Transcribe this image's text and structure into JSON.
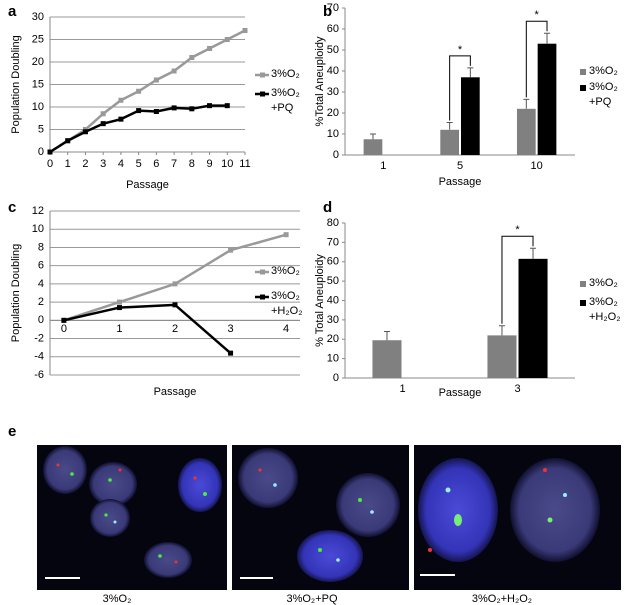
{
  "chart_data": [
    {
      "panel": "a",
      "type": "line",
      "x": [
        0,
        1,
        2,
        3,
        4,
        5,
        6,
        7,
        8,
        9,
        10,
        11
      ],
      "xlim": [
        0,
        11
      ],
      "xticks": [
        0,
        1,
        2,
        3,
        4,
        5,
        6,
        7,
        8,
        9,
        10,
        11
      ],
      "ylim": [
        0,
        30
      ],
      "yticks": [
        0,
        5,
        10,
        15,
        20,
        25,
        30
      ],
      "grid": true,
      "x_label": "Passage",
      "y_label": "Population Doubling",
      "series": [
        {
          "name": "3%O₂",
          "color": "#999999",
          "values": [
            0,
            2.5,
            5,
            8.5,
            11.5,
            13.5,
            16,
            18,
            21,
            23,
            25,
            27
          ]
        },
        {
          "name": "3%O₂\n+PQ",
          "color": "#000000",
          "values": [
            0,
            2.5,
            4.5,
            6.3,
            7.3,
            9.2,
            9,
            9.8,
            9.6,
            10.3,
            10.3,
            null
          ]
        }
      ]
    },
    {
      "panel": "b",
      "type": "bar",
      "categories": [
        "1",
        "5",
        "10"
      ],
      "ylim": [
        0,
        70
      ],
      "yticks": [
        0,
        10,
        20,
        30,
        40,
        50,
        60,
        70
      ],
      "x_label": "Passage",
      "y_label": "%Total  Aneuploidy",
      "significance": [
        null,
        "*",
        "*"
      ],
      "series": [
        {
          "name": "3%O₂",
          "color": "#808080",
          "values": [
            7.5,
            12,
            22
          ],
          "errors": [
            2.5,
            3.5,
            4.5
          ]
        },
        {
          "name": "3%O₂\n+PQ",
          "color": "#000000",
          "values": [
            null,
            37,
            53
          ],
          "errors": [
            null,
            4.5,
            5
          ]
        }
      ]
    },
    {
      "panel": "c",
      "type": "line",
      "categories": [
        "0",
        "1",
        "2",
        "3",
        "4"
      ],
      "ylim": [
        -6,
        12
      ],
      "yticks": [
        -6,
        -4,
        -2,
        0,
        2,
        4,
        6,
        8,
        10,
        12
      ],
      "grid": true,
      "x_label": "Passage",
      "y_label": "Population Doubling",
      "series": [
        {
          "name": "3%O₂",
          "color": "#999999",
          "values": [
            0,
            2,
            4,
            7.7,
            9.4
          ]
        },
        {
          "name": "3%O₂\n+H₂O₂",
          "color": "#000000",
          "values": [
            0,
            1.4,
            1.7,
            -3.6,
            null
          ]
        }
      ]
    },
    {
      "panel": "d",
      "type": "bar",
      "categories": [
        "1",
        "3"
      ],
      "ylim": [
        0,
        80
      ],
      "yticks": [
        0,
        10,
        20,
        30,
        40,
        50,
        60,
        70,
        80
      ],
      "x_label": "Passage",
      "y_label": "% Total  Aneuploidy",
      "significance": [
        null,
        "*"
      ],
      "series": [
        {
          "name": "3%O₂",
          "color": "#808080",
          "values": [
            19.5,
            22
          ],
          "errors": [
            4.5,
            5
          ]
        },
        {
          "name": "3%O₂\n+H₂O₂",
          "color": "#000000",
          "values": [
            null,
            61.5
          ],
          "errors": [
            null,
            5.5
          ]
        }
      ]
    }
  ],
  "images": {
    "panel": "e",
    "captions": [
      "3%O₂",
      "3%O₂+PQ",
      "3%O₂+H₂O₂"
    ]
  }
}
